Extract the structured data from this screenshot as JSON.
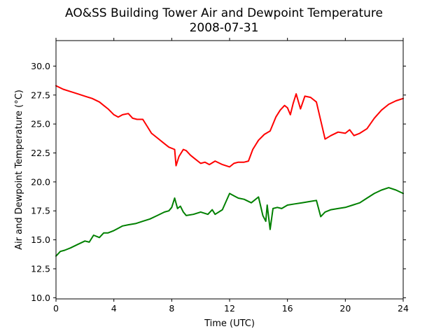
{
  "chart_data": {
    "type": "line",
    "title": "AO&SS Building Tower Air and Dewpoint Temperature",
    "subtitle": "2008-07-31",
    "xlabel": "Time (UTC)",
    "ylabel": "Air and Dewpoint Temperature (°C)",
    "xlim": [
      0,
      24
    ],
    "ylim": [
      9.9,
      32.2
    ],
    "xticks": [
      0,
      4,
      8,
      12,
      16,
      20,
      24
    ],
    "xtick_labels": [
      "0",
      "4",
      "8",
      "12",
      "16",
      "20",
      "24"
    ],
    "yticks": [
      10,
      12.5,
      15,
      17.5,
      20,
      22.5,
      25,
      27.5,
      30
    ],
    "ytick_labels": [
      "10.0",
      "12.5",
      "15.0",
      "17.5",
      "20.0",
      "22.5",
      "25.0",
      "27.5",
      "30.0"
    ],
    "grid": false,
    "series": [
      {
        "color": "#ff0000",
        "x": [
          0,
          0.5,
          1,
          1.5,
          2,
          2.5,
          3,
          3.3,
          3.6,
          4,
          4.3,
          4.6,
          5,
          5.3,
          5.6,
          6,
          6.3,
          6.6,
          7,
          7.5,
          7.8,
          8.2,
          8.3,
          8.5,
          8.8,
          9,
          9.3,
          9.6,
          10,
          10.3,
          10.6,
          11,
          11.5,
          12,
          12.3,
          12.6,
          13,
          13.3,
          13.6,
          14,
          14.4,
          14.8,
          15.2,
          15.5,
          15.8,
          16,
          16.2,
          16.4,
          16.6,
          16.9,
          17.2,
          17.6,
          18,
          18.3,
          18.6,
          19,
          19.5,
          20,
          20.3,
          20.6,
          21,
          21.5,
          22,
          22.5,
          23,
          23.5,
          24
        ],
        "y": [
          28.3,
          28.0,
          27.8,
          27.6,
          27.4,
          27.2,
          26.9,
          26.6,
          26.3,
          25.8,
          25.6,
          25.8,
          25.9,
          25.5,
          25.4,
          25.4,
          24.8,
          24.2,
          23.8,
          23.3,
          23.0,
          22.8,
          21.4,
          22.2,
          22.8,
          22.7,
          22.3,
          22.0,
          21.6,
          21.7,
          21.5,
          21.8,
          21.5,
          21.3,
          21.6,
          21.7,
          21.7,
          21.8,
          22.8,
          23.6,
          24.1,
          24.4,
          25.6,
          26.2,
          26.6,
          26.4,
          25.8,
          26.8,
          27.6,
          26.3,
          27.4,
          27.3,
          26.9,
          25.3,
          23.7,
          24.0,
          24.3,
          24.2,
          24.5,
          24.0,
          24.2,
          24.6,
          25.5,
          26.2,
          26.7,
          27.0,
          27.2
        ]
      },
      {
        "color": "#008000",
        "x": [
          0,
          0.3,
          0.6,
          1,
          1.5,
          2,
          2.3,
          2.6,
          3,
          3.3,
          3.6,
          4,
          4.3,
          4.6,
          5,
          5.5,
          6,
          6.5,
          7,
          7.5,
          7.8,
          8,
          8.2,
          8.4,
          8.6,
          8.8,
          9,
          9.5,
          10,
          10.5,
          10.8,
          11,
          11.5,
          12,
          12.3,
          12.6,
          13,
          13.5,
          14,
          14.3,
          14.5,
          14.6,
          14.8,
          15,
          15.3,
          15.6,
          16,
          16.5,
          17,
          17.5,
          18,
          18.3,
          18.6,
          19,
          19.5,
          20,
          20.5,
          21,
          21.5,
          22,
          22.5,
          23,
          23.5,
          24
        ],
        "y": [
          13.6,
          14.0,
          14.1,
          14.3,
          14.6,
          14.9,
          14.8,
          15.4,
          15.2,
          15.6,
          15.6,
          15.8,
          16.0,
          16.2,
          16.3,
          16.4,
          16.6,
          16.8,
          17.1,
          17.4,
          17.5,
          17.8,
          18.6,
          17.7,
          17.9,
          17.4,
          17.1,
          17.2,
          17.4,
          17.2,
          17.6,
          17.2,
          17.6,
          19.0,
          18.8,
          18.6,
          18.5,
          18.2,
          18.7,
          17.1,
          16.6,
          18.0,
          15.9,
          17.7,
          17.8,
          17.7,
          18.0,
          18.1,
          18.2,
          18.3,
          18.4,
          17.0,
          17.4,
          17.6,
          17.7,
          17.8,
          18.0,
          18.2,
          18.6,
          19.0,
          19.3,
          19.5,
          19.3,
          19.0
        ]
      }
    ]
  }
}
